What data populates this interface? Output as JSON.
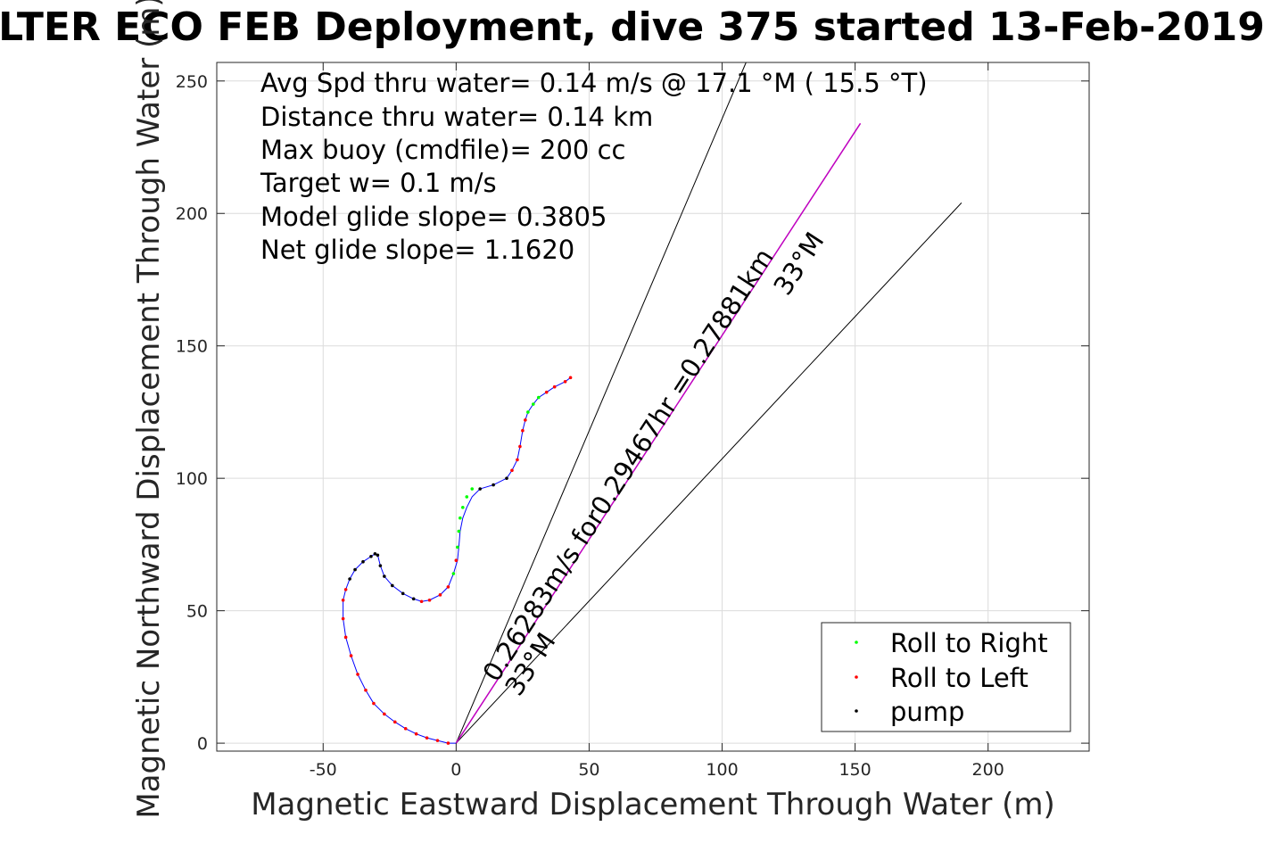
{
  "chart_data": {
    "type": "scatter",
    "title": "LTER ECO FEB Deployment, dive 375 started 13-Feb-2019",
    "xlabel": "Magnetic Eastward Displacement Through Water (m)",
    "ylabel": "Magnetic Northward Displacement Through Water (m)",
    "xlim": [
      -90,
      238
    ],
    "ylim": [
      -3,
      257
    ],
    "x_ticks": [
      -50,
      0,
      50,
      100,
      150,
      200
    ],
    "x_tick_labels": [
      "-50",
      "0",
      "50",
      "100",
      "150",
      "200"
    ],
    "y_ticks": [
      0,
      50,
      100,
      150,
      200,
      250
    ],
    "y_tick_labels": [
      "0",
      "50",
      "100",
      "150",
      "200",
      "250"
    ],
    "grid": true,
    "legend_position": "bottom-right",
    "stats_text": [
      "Avg Spd thru water=  0.14 m/s @  17.1 °M ( 15.5 °T)",
      "Distance thru water=  0.14 km",
      "Max buoy (cmdfile)= 200 cc",
      "Target w= 0.1 m/s",
      "Model glide slope= 0.3805",
      "Net glide slope= 1.1620"
    ],
    "current_label": "0.26283m/s for0.29467hr =0.27881km",
    "angle_label_upper": "33°M",
    "angle_label_lower": "33°M",
    "current_vector": {
      "from": [
        0,
        0
      ],
      "to": [
        152,
        234
      ],
      "color": "#bf00bf"
    },
    "cone_lines": [
      {
        "from": [
          0,
          0
        ],
        "to": [
          109,
          257
        ]
      },
      {
        "from": [
          0,
          0
        ],
        "to": [
          190,
          204
        ]
      }
    ],
    "track": {
      "x": [
        0,
        -3,
        -7,
        -11,
        -15,
        -19,
        -23,
        -27,
        -31,
        -34,
        -37,
        -39.5,
        -41.5,
        -42.5,
        -42.5,
        -41.5,
        -40,
        -38,
        -35,
        -32,
        -30.5,
        -29.5,
        -28.5,
        -27,
        -24,
        -20,
        -16,
        -13,
        -10,
        -6,
        -3,
        -1,
        0.5,
        1,
        1.5,
        2.5,
        4,
        6,
        9,
        14,
        19,
        21,
        23,
        24,
        25,
        26,
        27,
        29,
        31,
        34,
        37,
        41,
        43
      ],
      "y": [
        0,
        0,
        1,
        2,
        3.5,
        5.5,
        8,
        11,
        15,
        20,
        26,
        33,
        40,
        47,
        54,
        58,
        62,
        65.5,
        68.5,
        70.5,
        71.5,
        71,
        67,
        63,
        59.5,
        56.5,
        54.5,
        53.5,
        54,
        56,
        59,
        64,
        69,
        74,
        80,
        85,
        89,
        93,
        96,
        97.5,
        100,
        103,
        107,
        112,
        118,
        122,
        125,
        128,
        130.5,
        132.5,
        134.5,
        136.5,
        138
      ],
      "color": "#0000ff"
    },
    "series": [
      {
        "name": "Roll to Right",
        "color": "#00ff00",
        "x": [
          -1,
          0.5,
          1,
          1.5,
          2.5,
          4,
          6,
          27,
          29,
          31
        ],
        "y": [
          64,
          74,
          80,
          85,
          89,
          93,
          96,
          125,
          128,
          130.5
        ]
      },
      {
        "name": "Roll to Left",
        "color": "#ff0000",
        "x": [
          -3,
          -7,
          -11,
          -15,
          -19,
          -23,
          -27,
          -31,
          -34,
          -37,
          -39.5,
          -41.5,
          -42.5,
          -42.5,
          -41.5,
          -13,
          -10,
          -6,
          -3,
          0,
          21,
          23,
          24,
          25,
          26,
          34,
          37,
          41,
          43
        ],
        "y": [
          0,
          1,
          2,
          3.5,
          5.5,
          8,
          11,
          15,
          20,
          26,
          33,
          40,
          47,
          54,
          58,
          53.5,
          54,
          56,
          59,
          69,
          103,
          107,
          112,
          118,
          122,
          132.5,
          134.5,
          136.5,
          138
        ]
      },
      {
        "name": "pump",
        "color": "#000000",
        "x": [
          -40,
          -38,
          -35,
          -32,
          -30.5,
          -29.5,
          -28.5,
          -27,
          -24,
          -20,
          -16,
          9,
          14,
          19
        ],
        "y": [
          62,
          65.5,
          68.5,
          70.5,
          71.5,
          71,
          67,
          63,
          59.5,
          56.5,
          54.5,
          96,
          97.5,
          100
        ]
      }
    ]
  }
}
